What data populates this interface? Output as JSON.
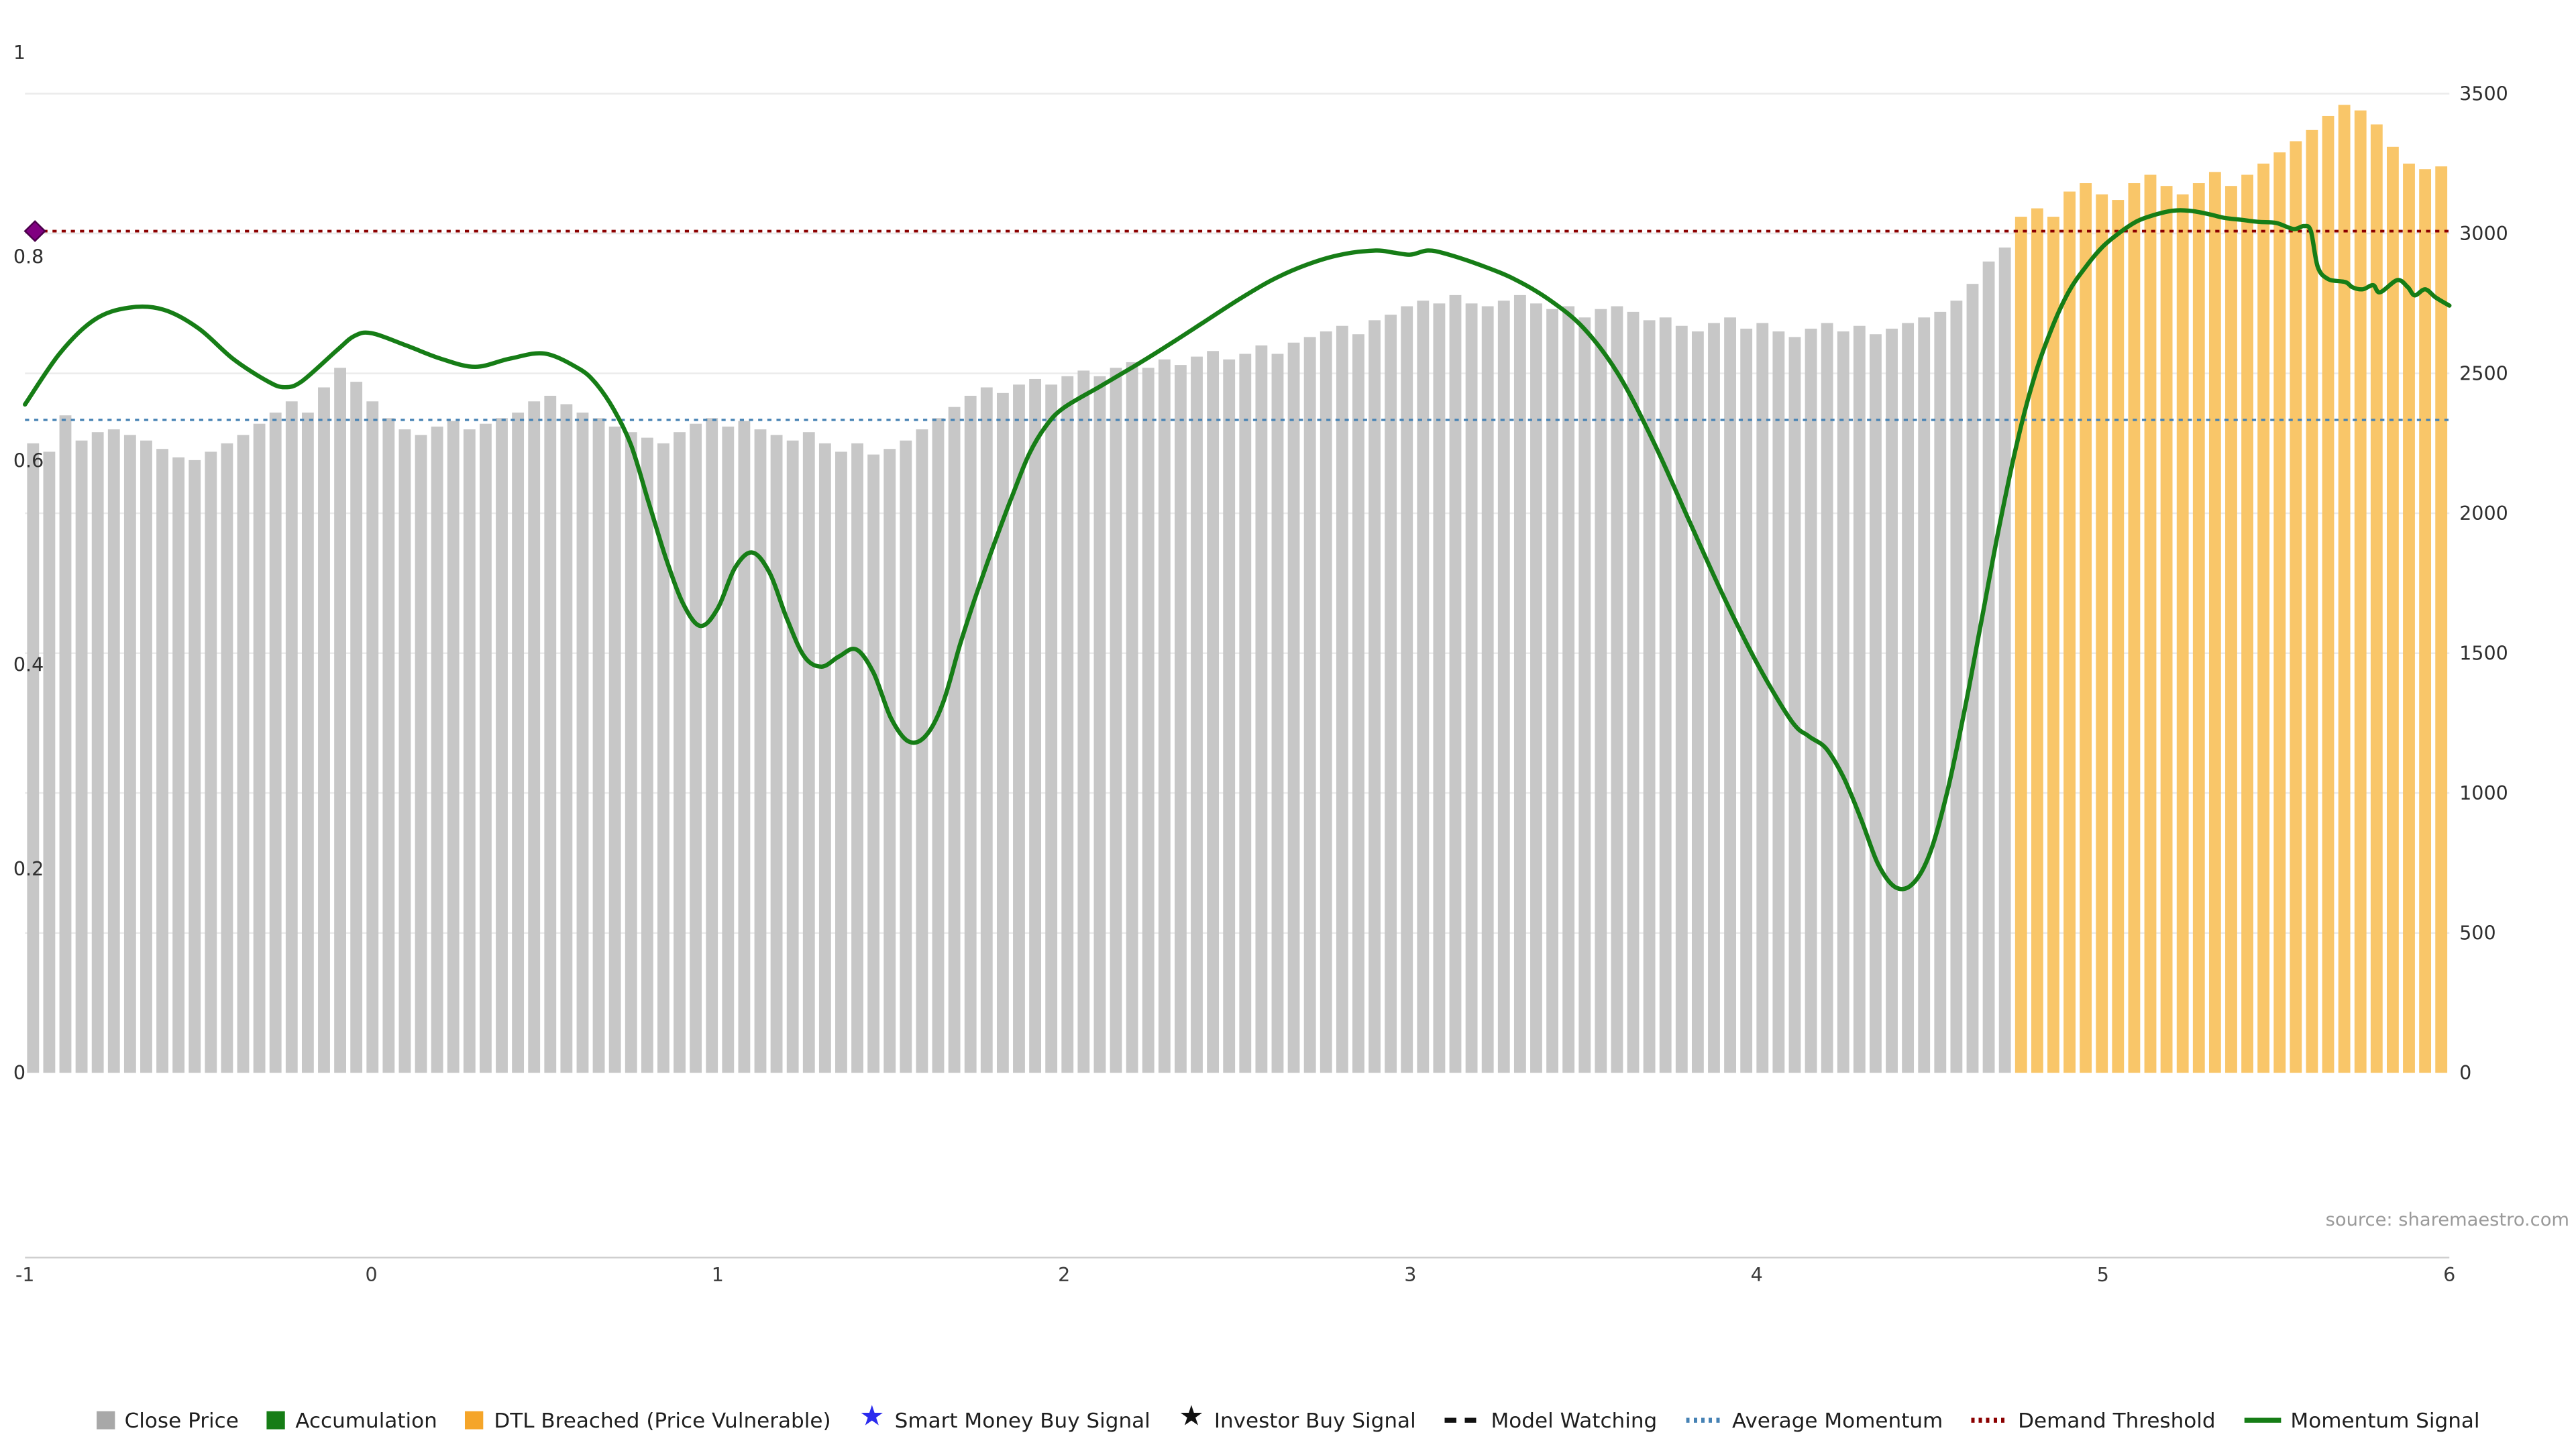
{
  "meta": {
    "source_text": "source: sharemaestro.com"
  },
  "colors": {
    "close_price_bar": "#c7c7c7",
    "dtl_breached_bar": "#f9c669",
    "momentum_signal": "#167d16",
    "average_momentum": "#4682b4",
    "demand_threshold": "#8b0000",
    "diamond": "#800080",
    "diamond_edge": "#4b004b",
    "grid": "#ebebeb",
    "axis_line": "#cfcfcf"
  },
  "legend": {
    "items": [
      {
        "id": "close-price",
        "label": "Close Price",
        "marker": "square",
        "color": "#a8a8a8"
      },
      {
        "id": "accumulation",
        "label": "Accumulation",
        "marker": "square",
        "color": "#167d16"
      },
      {
        "id": "dtl-breached",
        "label": "DTL Breached (Price Vulnerable)",
        "marker": "square",
        "color": "#f5a529"
      },
      {
        "id": "smart-money-buy-signal",
        "label": "Smart Money Buy Signal",
        "marker": "star",
        "color": "#2b2bee"
      },
      {
        "id": "investor-buy-signal",
        "label": "Investor Buy Signal",
        "marker": "star",
        "color": "#111111"
      },
      {
        "id": "model-watching",
        "label": "Model Watching",
        "marker": "dashed",
        "color": "#111111"
      },
      {
        "id": "average-momentum",
        "label": "Average Momentum",
        "marker": "dotted",
        "color": "#4682b4"
      },
      {
        "id": "demand-threshold",
        "label": "Demand Threshold",
        "marker": "dotted",
        "color": "#8b0000"
      },
      {
        "id": "momentum-signal",
        "label": "Momentum Signal",
        "marker": "line",
        "color": "#167d16"
      }
    ]
  },
  "chart_data": {
    "type": "bar+line",
    "title": "",
    "xlabel": "",
    "ylabel_left": "",
    "ylabel_right": "",
    "xlim": [
      -1,
      6
    ],
    "left_ylim": [
      0,
      1
    ],
    "right_ylim": [
      0,
      3500
    ],
    "x_ticks": [
      -1,
      0,
      1,
      2,
      3,
      4,
      5,
      6
    ],
    "x_tick_labels": [
      "-1",
      "0",
      "1",
      "2",
      "3",
      "4",
      "5",
      "6"
    ],
    "left_y_ticks": [
      0,
      0.2,
      0.4,
      0.6,
      0.8,
      1
    ],
    "left_y_tick_labels": [
      "0",
      "0.2",
      "0.4",
      "0.6",
      "0.8",
      "1"
    ],
    "right_y_ticks": [
      0,
      500,
      1000,
      1500,
      2000,
      2500,
      3000,
      3500
    ],
    "right_y_tick_labels": [
      "0",
      "500",
      "1000",
      "1500",
      "2000",
      "2500",
      "3000",
      "3500"
    ],
    "average_momentum": 0.64,
    "demand_threshold": 0.825,
    "diamond_marker": {
      "x": -1,
      "y": 0.825
    },
    "bars": {
      "axis": "right",
      "dtl_start_index": 123,
      "values": [
        2250,
        2220,
        2350,
        2260,
        2290,
        2300,
        2280,
        2260,
        2230,
        2200,
        2190,
        2220,
        2250,
        2280,
        2320,
        2360,
        2400,
        2360,
        2450,
        2520,
        2470,
        2400,
        2340,
        2300,
        2280,
        2310,
        2330,
        2300,
        2320,
        2340,
        2360,
        2400,
        2420,
        2390,
        2360,
        2340,
        2310,
        2290,
        2270,
        2250,
        2290,
        2320,
        2340,
        2310,
        2330,
        2300,
        2280,
        2260,
        2290,
        2250,
        2220,
        2250,
        2210,
        2230,
        2260,
        2300,
        2340,
        2380,
        2420,
        2450,
        2430,
        2460,
        2480,
        2460,
        2490,
        2510,
        2490,
        2520,
        2540,
        2520,
        2550,
        2530,
        2560,
        2580,
        2550,
        2570,
        2600,
        2570,
        2610,
        2630,
        2650,
        2670,
        2640,
        2690,
        2710,
        2740,
        2760,
        2750,
        2780,
        2750,
        2740,
        2760,
        2780,
        2750,
        2730,
        2740,
        2700,
        2730,
        2740,
        2720,
        2690,
        2700,
        2670,
        2650,
        2680,
        2700,
        2660,
        2680,
        2650,
        2630,
        2660,
        2680,
        2650,
        2670,
        2640,
        2660,
        2680,
        2700,
        2720,
        2760,
        2820,
        2900,
        2950,
        3060,
        3090,
        3060,
        3150,
        3180,
        3140,
        3120,
        3180,
        3210,
        3170,
        3140,
        3180,
        3220,
        3170,
        3210,
        3250,
        3290,
        3330,
        3370,
        3420,
        3460,
        3440,
        3390,
        3310,
        3250,
        3230,
        3240
      ]
    },
    "momentum": {
      "axis": "left",
      "x": [
        -1.0,
        -0.9,
        -0.8,
        -0.7,
        -0.6,
        -0.5,
        -0.4,
        -0.3,
        -0.25,
        -0.2,
        -0.1,
        -0.05,
        0.0,
        0.1,
        0.2,
        0.3,
        0.4,
        0.5,
        0.6,
        0.65,
        0.7,
        0.75,
        0.8,
        0.85,
        0.9,
        0.95,
        1.0,
        1.05,
        1.1,
        1.15,
        1.2,
        1.25,
        1.3,
        1.35,
        1.4,
        1.45,
        1.5,
        1.55,
        1.6,
        1.65,
        1.7,
        1.75,
        1.8,
        1.85,
        1.9,
        1.95,
        2.0,
        2.1,
        2.2,
        2.3,
        2.4,
        2.5,
        2.6,
        2.7,
        2.8,
        2.9,
        2.95,
        3.0,
        3.05,
        3.1,
        3.2,
        3.3,
        3.4,
        3.5,
        3.6,
        3.7,
        3.8,
        3.9,
        4.0,
        4.1,
        4.15,
        4.2,
        4.25,
        4.3,
        4.35,
        4.4,
        4.45,
        4.5,
        4.55,
        4.6,
        4.65,
        4.7,
        4.75,
        4.8,
        4.85,
        4.9,
        4.95,
        5.0,
        5.05,
        5.1,
        5.15,
        5.2,
        5.25,
        5.3,
        5.35,
        5.4,
        5.45,
        5.5,
        5.55,
        5.58,
        5.6,
        5.62,
        5.65,
        5.7,
        5.72,
        5.75,
        5.78,
        5.8,
        5.85,
        5.88,
        5.9,
        5.93,
        5.96,
        6.0
      ],
      "y": [
        0.655,
        0.705,
        0.738,
        0.75,
        0.748,
        0.73,
        0.7,
        0.678,
        0.672,
        0.678,
        0.708,
        0.722,
        0.725,
        0.713,
        0.7,
        0.692,
        0.7,
        0.705,
        0.69,
        0.675,
        0.65,
        0.615,
        0.56,
        0.505,
        0.46,
        0.438,
        0.455,
        0.495,
        0.51,
        0.49,
        0.445,
        0.408,
        0.398,
        0.408,
        0.415,
        0.392,
        0.348,
        0.325,
        0.33,
        0.362,
        0.42,
        0.472,
        0.52,
        0.565,
        0.607,
        0.635,
        0.652,
        0.672,
        0.692,
        0.713,
        0.735,
        0.757,
        0.777,
        0.792,
        0.802,
        0.806,
        0.804,
        0.802,
        0.806,
        0.803,
        0.792,
        0.778,
        0.758,
        0.73,
        0.685,
        0.62,
        0.545,
        0.47,
        0.402,
        0.345,
        0.33,
        0.318,
        0.29,
        0.25,
        0.205,
        0.182,
        0.185,
        0.215,
        0.275,
        0.355,
        0.445,
        0.535,
        0.615,
        0.68,
        0.728,
        0.765,
        0.79,
        0.81,
        0.824,
        0.835,
        0.841,
        0.845,
        0.845,
        0.842,
        0.838,
        0.836,
        0.834,
        0.833,
        0.827,
        0.83,
        0.825,
        0.79,
        0.778,
        0.775,
        0.77,
        0.768,
        0.772,
        0.765,
        0.777,
        0.77,
        0.762,
        0.768,
        0.76,
        0.752
      ]
    }
  }
}
